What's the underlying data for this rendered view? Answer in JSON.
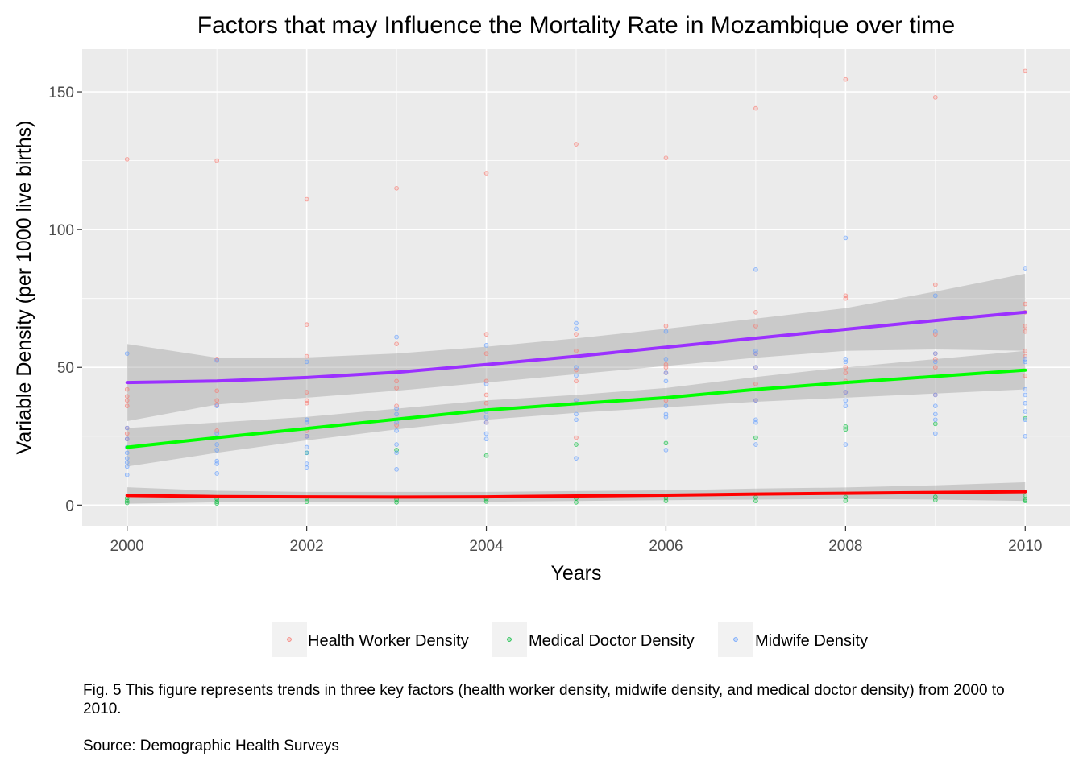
{
  "chart_data": {
    "type": "scatter",
    "title": "Factors that may Influence the Mortality Rate in Mozambique over time",
    "xlabel": "Years",
    "ylabel": "Variable Density (per 1000 live births)",
    "xlim": [
      1999.5,
      2010.5
    ],
    "ylim": [
      -7.5,
      165.5
    ],
    "x_ticks": [
      2000,
      2002,
      2004,
      2006,
      2008,
      2010
    ],
    "y_ticks": [
      0,
      50,
      100,
      150
    ],
    "grid": true,
    "legend_position": "bottom",
    "smooth_lines": [
      {
        "color": "#9b30ff",
        "x": [
          2000,
          2001,
          2002,
          2003,
          2004,
          2005,
          2006,
          2007,
          2008,
          2009,
          2010
        ],
        "y": [
          44.5,
          45.0,
          46.3,
          48.2,
          51.0,
          54.0,
          57.3,
          60.6,
          63.8,
          67.0,
          70.0
        ],
        "lower": [
          30.5,
          36.5,
          39.0,
          41.5,
          44.5,
          47.5,
          50.5,
          53.5,
          56.0,
          56.5,
          56.0
        ],
        "upper": [
          58.5,
          53.5,
          53.6,
          55.0,
          57.5,
          60.5,
          64.0,
          67.7,
          71.5,
          77.5,
          84.0
        ]
      },
      {
        "color": "#00ff00",
        "x": [
          2000,
          2001,
          2002,
          2003,
          2004,
          2005,
          2006,
          2007,
          2008,
          2009,
          2010
        ],
        "y": [
          21.0,
          24.5,
          27.8,
          31.2,
          34.5,
          36.8,
          39.0,
          42.0,
          44.5,
          46.7,
          49.0
        ],
        "lower": [
          14.0,
          19.0,
          23.5,
          27.5,
          31.0,
          33.5,
          35.5,
          37.5,
          39.0,
          40.5,
          42.0
        ],
        "upper": [
          28.0,
          30.0,
          32.0,
          35.0,
          38.0,
          40.0,
          42.5,
          46.5,
          50.0,
          53.0,
          56.0
        ]
      },
      {
        "color": "#ff0000",
        "x": [
          2000,
          2001,
          2002,
          2003,
          2004,
          2005,
          2006,
          2007,
          2008,
          2009,
          2010
        ],
        "y": [
          3.5,
          3.1,
          3.0,
          2.9,
          3.0,
          3.3,
          3.6,
          4.0,
          4.3,
          4.6,
          4.9
        ],
        "lower": [
          0.5,
          1.0,
          1.2,
          1.0,
          1.2,
          1.5,
          1.8,
          2.0,
          2.2,
          2.0,
          1.5
        ],
        "upper": [
          6.5,
          5.2,
          4.8,
          4.8,
          4.8,
          5.1,
          5.4,
          6.0,
          6.4,
          7.2,
          8.3
        ]
      }
    ],
    "series": [
      {
        "name": "Health Worker Density",
        "color": "#f8766d",
        "points": [
          [
            2000,
            125.5
          ],
          [
            2000,
            42
          ],
          [
            2000,
            39.5
          ],
          [
            2000,
            38
          ],
          [
            2000,
            36
          ],
          [
            2000,
            28
          ],
          [
            2000,
            26
          ],
          [
            2000,
            24
          ],
          [
            2001,
            125
          ],
          [
            2001,
            53
          ],
          [
            2001,
            41.5
          ],
          [
            2001,
            38
          ],
          [
            2001,
            36.5
          ],
          [
            2001,
            27
          ],
          [
            2002,
            111
          ],
          [
            2002,
            65.5
          ],
          [
            2002,
            54
          ],
          [
            2002,
            41
          ],
          [
            2002,
            38
          ],
          [
            2002,
            37
          ],
          [
            2002,
            27
          ],
          [
            2002,
            25
          ],
          [
            2003,
            115
          ],
          [
            2003,
            58.5
          ],
          [
            2003,
            48.5
          ],
          [
            2003,
            45
          ],
          [
            2003,
            42.5
          ],
          [
            2003,
            36
          ],
          [
            2003,
            29
          ],
          [
            2004,
            120.5
          ],
          [
            2004,
            62
          ],
          [
            2004,
            55
          ],
          [
            2004,
            45
          ],
          [
            2004,
            40
          ],
          [
            2004,
            37
          ],
          [
            2004,
            30
          ],
          [
            2005,
            131
          ],
          [
            2005,
            62
          ],
          [
            2005,
            56
          ],
          [
            2005,
            49
          ],
          [
            2005,
            45
          ],
          [
            2005,
            37
          ],
          [
            2005,
            24.5
          ],
          [
            2006,
            126
          ],
          [
            2006,
            65
          ],
          [
            2006,
            51
          ],
          [
            2006,
            50
          ],
          [
            2006,
            48
          ],
          [
            2006,
            38
          ],
          [
            2007,
            144
          ],
          [
            2007,
            70
          ],
          [
            2007,
            65
          ],
          [
            2007,
            55
          ],
          [
            2007,
            50
          ],
          [
            2007,
            44
          ],
          [
            2007,
            38
          ],
          [
            2008,
            154.5
          ],
          [
            2008,
            76
          ],
          [
            2008,
            75
          ],
          [
            2008,
            50
          ],
          [
            2008,
            48
          ],
          [
            2008,
            45
          ],
          [
            2008,
            41
          ],
          [
            2009,
            148
          ],
          [
            2009,
            80
          ],
          [
            2009,
            62
          ],
          [
            2009,
            55
          ],
          [
            2009,
            53
          ],
          [
            2009,
            50
          ],
          [
            2009,
            40
          ],
          [
            2010,
            157.5
          ],
          [
            2010,
            73
          ],
          [
            2010,
            70
          ],
          [
            2010,
            65
          ],
          [
            2010,
            63
          ],
          [
            2010,
            56
          ],
          [
            2010,
            54
          ],
          [
            2010,
            47
          ]
        ]
      },
      {
        "name": "Medical Doctor Density",
        "color": "#00ba38",
        "points": [
          [
            2000,
            2.5
          ],
          [
            2000,
            1.5
          ],
          [
            2000,
            0.8
          ],
          [
            2001,
            2.2
          ],
          [
            2001,
            1.2
          ],
          [
            2001,
            0.6
          ],
          [
            2002,
            19
          ],
          [
            2002,
            2.5
          ],
          [
            2002,
            1.2
          ],
          [
            2003,
            20
          ],
          [
            2003,
            2
          ],
          [
            2003,
            1
          ],
          [
            2004,
            18
          ],
          [
            2004,
            2.3
          ],
          [
            2004,
            1.3
          ],
          [
            2005,
            22
          ],
          [
            2005,
            2.5
          ],
          [
            2005,
            1
          ],
          [
            2006,
            22.5
          ],
          [
            2006,
            2.6
          ],
          [
            2006,
            1.5
          ],
          [
            2007,
            24.5
          ],
          [
            2007,
            2.8
          ],
          [
            2007,
            1.5
          ],
          [
            2008,
            28.5
          ],
          [
            2008,
            27.5
          ],
          [
            2008,
            2.9
          ],
          [
            2008,
            1.6
          ],
          [
            2009,
            29.5
          ],
          [
            2009,
            3
          ],
          [
            2009,
            1.8
          ],
          [
            2010,
            31.5
          ],
          [
            2010,
            3.5
          ],
          [
            2010,
            2
          ],
          [
            2010,
            1.5
          ]
        ]
      },
      {
        "name": "Midwife Density",
        "color": "#619cff",
        "points": [
          [
            2000,
            55
          ],
          [
            2000,
            28
          ],
          [
            2000,
            24
          ],
          [
            2000,
            21
          ],
          [
            2000,
            19
          ],
          [
            2000,
            17
          ],
          [
            2000,
            15.5
          ],
          [
            2000,
            14
          ],
          [
            2000,
            11
          ],
          [
            2001,
            52.5
          ],
          [
            2001,
            36
          ],
          [
            2001,
            26
          ],
          [
            2001,
            22
          ],
          [
            2001,
            20
          ],
          [
            2001,
            16
          ],
          [
            2001,
            15
          ],
          [
            2001,
            11.5
          ],
          [
            2002,
            52
          ],
          [
            2002,
            31
          ],
          [
            2002,
            30
          ],
          [
            2002,
            25
          ],
          [
            2002,
            21
          ],
          [
            2002,
            19
          ],
          [
            2002,
            15
          ],
          [
            2002,
            13.5
          ],
          [
            2003,
            61
          ],
          [
            2003,
            35
          ],
          [
            2003,
            33
          ],
          [
            2003,
            30
          ],
          [
            2003,
            27
          ],
          [
            2003,
            22
          ],
          [
            2003,
            19
          ],
          [
            2003,
            13
          ],
          [
            2004,
            58
          ],
          [
            2004,
            44
          ],
          [
            2004,
            34
          ],
          [
            2004,
            32
          ],
          [
            2004,
            30
          ],
          [
            2004,
            26
          ],
          [
            2004,
            24
          ],
          [
            2005,
            66
          ],
          [
            2005,
            64
          ],
          [
            2005,
            50
          ],
          [
            2005,
            47
          ],
          [
            2005,
            38
          ],
          [
            2005,
            33
          ],
          [
            2005,
            31
          ],
          [
            2005,
            17
          ],
          [
            2006,
            63
          ],
          [
            2006,
            53
          ],
          [
            2006,
            48
          ],
          [
            2006,
            45
          ],
          [
            2006,
            36
          ],
          [
            2006,
            33
          ],
          [
            2006,
            32
          ],
          [
            2006,
            20
          ],
          [
            2007,
            85.5
          ],
          [
            2007,
            56
          ],
          [
            2007,
            55
          ],
          [
            2007,
            50
          ],
          [
            2007,
            38
          ],
          [
            2007,
            31
          ],
          [
            2007,
            30
          ],
          [
            2007,
            22
          ],
          [
            2008,
            97
          ],
          [
            2008,
            53
          ],
          [
            2008,
            52
          ],
          [
            2008,
            41
          ],
          [
            2008,
            38
          ],
          [
            2008,
            36
          ],
          [
            2008,
            22
          ],
          [
            2009,
            76
          ],
          [
            2009,
            63
          ],
          [
            2009,
            55
          ],
          [
            2009,
            52
          ],
          [
            2009,
            40
          ],
          [
            2009,
            36
          ],
          [
            2009,
            33
          ],
          [
            2009,
            31
          ],
          [
            2009,
            26
          ],
          [
            2010,
            86
          ],
          [
            2010,
            53
          ],
          [
            2010,
            52
          ],
          [
            2010,
            42
          ],
          [
            2010,
            40
          ],
          [
            2010,
            37
          ],
          [
            2010,
            34
          ],
          [
            2010,
            31
          ],
          [
            2010,
            25
          ]
        ]
      }
    ]
  },
  "caption": {
    "text": "Fig. 5 This figure represents trends in three key factors (health worker density, midwife density, and medical doctor density) from 2000 to 2010.",
    "source": "Source: Demographic Health Surveys"
  }
}
